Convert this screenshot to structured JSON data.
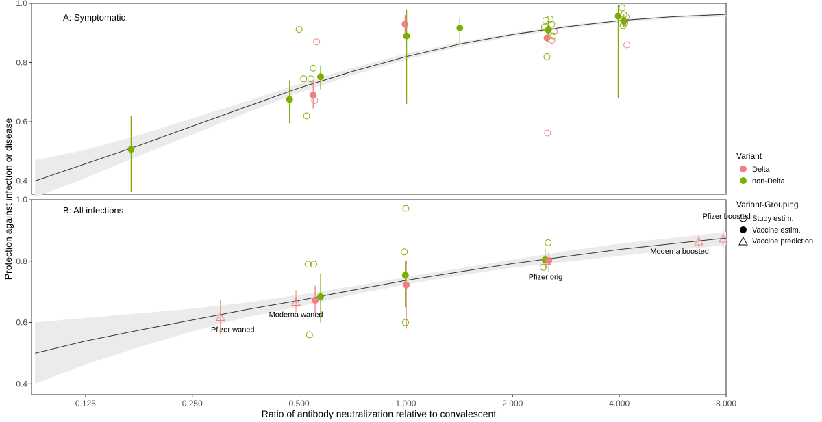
{
  "chart_data": {
    "type": "scatter",
    "xlabel": "Ratio of antibody neutralization relative to convalescent",
    "ylabel": "Protection against infection or disease",
    "x_scale": "log2",
    "xlim": [
      0.088,
      8.0
    ],
    "x_ticks": [
      0.125,
      0.25,
      0.5,
      1.0,
      2.0,
      4.0,
      8.0
    ],
    "x_tick_labels": [
      "0.125",
      "0.250",
      "0.500",
      "1.000",
      "2.000",
      "4.000",
      "8.000"
    ],
    "grid": false,
    "legend_position": "right",
    "colors": {
      "Delta": "#f08080",
      "non-Delta": "#7cae00",
      "curve": "#333333",
      "ribbon": "#ebebeb"
    },
    "legend": {
      "variant_title": "Variant",
      "variants": [
        "Delta",
        "non-Delta"
      ],
      "grouping_title": "Variant-Grouping",
      "groupings": [
        "Study estim.",
        "Vaccine estim.",
        "Vaccine prediction"
      ]
    },
    "panels": [
      {
        "title": "A: Symptomatic",
        "ylim": [
          0.355,
          1.0
        ],
        "y_ticks": [
          0.4,
          0.6,
          0.8,
          1.0
        ],
        "y_tick_labels": [
          "0.4",
          "0.6",
          "0.8",
          "1.0"
        ],
        "curve": [
          [
            0.09,
            0.4
          ],
          [
            0.125,
            0.458
          ],
          [
            0.177,
            0.52
          ],
          [
            0.25,
            0.585
          ],
          [
            0.354,
            0.65
          ],
          [
            0.5,
            0.714
          ],
          [
            0.707,
            0.77
          ],
          [
            1.0,
            0.82
          ],
          [
            1.414,
            0.862
          ],
          [
            2.0,
            0.895
          ],
          [
            2.83,
            0.921
          ],
          [
            4.0,
            0.942
          ],
          [
            5.66,
            0.955
          ],
          [
            8.0,
            0.963
          ]
        ],
        "ribbon_upper": [
          [
            0.09,
            0.47
          ],
          [
            0.125,
            0.505
          ],
          [
            0.177,
            0.555
          ],
          [
            0.25,
            0.612
          ],
          [
            0.354,
            0.668
          ],
          [
            0.5,
            0.728
          ],
          [
            0.707,
            0.782
          ],
          [
            1.0,
            0.83
          ],
          [
            1.414,
            0.869
          ],
          [
            2.0,
            0.9
          ],
          [
            2.83,
            0.926
          ],
          [
            4.0,
            0.946
          ],
          [
            5.66,
            0.958
          ],
          [
            8.0,
            0.966
          ]
        ],
        "ribbon_lower": [
          [
            0.09,
            0.345
          ],
          [
            0.125,
            0.41
          ],
          [
            0.177,
            0.485
          ],
          [
            0.25,
            0.557
          ],
          [
            0.354,
            0.63
          ],
          [
            0.5,
            0.698
          ],
          [
            0.707,
            0.757
          ],
          [
            1.0,
            0.81
          ],
          [
            1.414,
            0.854
          ],
          [
            2.0,
            0.888
          ],
          [
            2.83,
            0.915
          ],
          [
            4.0,
            0.936
          ],
          [
            5.66,
            0.949
          ],
          [
            8.0,
            0.955
          ]
        ],
        "vaccine_estimates": [
          {
            "variant": "non-Delta",
            "x": 0.168,
            "y": 0.507,
            "lo": 0.362,
            "hi": 0.62
          },
          {
            "variant": "non-Delta",
            "x": 0.47,
            "y": 0.675,
            "lo": 0.595,
            "hi": 0.74
          },
          {
            "variant": "Delta",
            "x": 0.548,
            "y": 0.69,
            "lo": 0.645,
            "hi": 0.74
          },
          {
            "variant": "non-Delta",
            "x": 0.575,
            "y": 0.752,
            "lo": 0.71,
            "hi": 0.79
          },
          {
            "variant": "Delta",
            "x": 0.995,
            "y": 0.93,
            "lo": 0.89,
            "hi": 0.96
          },
          {
            "variant": "non-Delta",
            "x": 1.005,
            "y": 0.89,
            "lo": 0.66,
            "hi": 0.98
          },
          {
            "variant": "non-Delta",
            "x": 1.42,
            "y": 0.917,
            "lo": 0.86,
            "hi": 0.95
          },
          {
            "variant": "Delta",
            "x": 2.5,
            "y": 0.883,
            "lo": 0.85,
            "hi": 0.9
          },
          {
            "variant": "non-Delta",
            "x": 2.52,
            "y": 0.91,
            "lo": 0.87,
            "hi": 0.94
          },
          {
            "variant": "non-Delta",
            "x": 3.97,
            "y": 0.957,
            "lo": 0.68,
            "hi": 0.995
          },
          {
            "variant": "non-Delta",
            "x": 4.12,
            "y": 0.94,
            "lo": 0.92,
            "hi": 0.96
          }
        ],
        "study_estimates": [
          {
            "variant": "non-Delta",
            "x": 0.5,
            "y": 0.912
          },
          {
            "variant": "Delta",
            "x": 0.56,
            "y": 0.87
          },
          {
            "variant": "non-Delta",
            "x": 0.515,
            "y": 0.745
          },
          {
            "variant": "non-Delta",
            "x": 0.54,
            "y": 0.745
          },
          {
            "variant": "non-Delta",
            "x": 0.548,
            "y": 0.781
          },
          {
            "variant": "Delta",
            "x": 0.553,
            "y": 0.672
          },
          {
            "variant": "non-Delta",
            "x": 0.525,
            "y": 0.62
          },
          {
            "variant": "Delta",
            "x": 2.51,
            "y": 0.562
          },
          {
            "variant": "non-Delta",
            "x": 2.5,
            "y": 0.82
          },
          {
            "variant": "non-Delta",
            "x": 2.46,
            "y": 0.92
          },
          {
            "variant": "non-Delta",
            "x": 2.48,
            "y": 0.942
          },
          {
            "variant": "non-Delta",
            "x": 2.55,
            "y": 0.947
          },
          {
            "variant": "non-Delta",
            "x": 2.58,
            "y": 0.93
          },
          {
            "variant": "Delta",
            "x": 2.62,
            "y": 0.905
          },
          {
            "variant": "non-Delta",
            "x": 2.6,
            "y": 0.89
          },
          {
            "variant": "Delta",
            "x": 2.58,
            "y": 0.875
          },
          {
            "variant": "non-Delta",
            "x": 4.07,
            "y": 0.985
          },
          {
            "variant": "non-Delta",
            "x": 4.12,
            "y": 0.962
          },
          {
            "variant": "Delta",
            "x": 4.18,
            "y": 0.955
          },
          {
            "variant": "non-Delta",
            "x": 4.1,
            "y": 0.925
          },
          {
            "variant": "Delta",
            "x": 4.15,
            "y": 0.935
          },
          {
            "variant": "Delta",
            "x": 4.2,
            "y": 0.86
          }
        ],
        "vaccine_predictions": []
      },
      {
        "title": "B: All infections",
        "ylim": [
          0.365,
          1.0
        ],
        "y_ticks": [
          0.4,
          0.6,
          0.8,
          1.0
        ],
        "y_tick_labels": [
          "0.4",
          "0.6",
          "0.8",
          "1.0"
        ],
        "curve": [
          [
            0.09,
            0.5
          ],
          [
            0.125,
            0.54
          ],
          [
            0.177,
            0.575
          ],
          [
            0.25,
            0.608
          ],
          [
            0.354,
            0.642
          ],
          [
            0.5,
            0.672
          ],
          [
            0.707,
            0.705
          ],
          [
            1.0,
            0.737
          ],
          [
            1.414,
            0.765
          ],
          [
            2.0,
            0.792
          ],
          [
            2.83,
            0.815
          ],
          [
            4.0,
            0.838
          ],
          [
            5.66,
            0.857
          ],
          [
            8.0,
            0.875
          ]
        ],
        "ribbon_upper": [
          [
            0.09,
            0.6
          ],
          [
            0.125,
            0.615
          ],
          [
            0.177,
            0.63
          ],
          [
            0.25,
            0.645
          ],
          [
            0.354,
            0.665
          ],
          [
            0.5,
            0.69
          ],
          [
            0.707,
            0.718
          ],
          [
            1.0,
            0.748
          ],
          [
            1.414,
            0.776
          ],
          [
            2.0,
            0.805
          ],
          [
            2.83,
            0.832
          ],
          [
            4.0,
            0.857
          ],
          [
            5.66,
            0.876
          ],
          [
            8.0,
            0.895
          ]
        ],
        "ribbon_lower": [
          [
            0.09,
            0.4
          ],
          [
            0.125,
            0.463
          ],
          [
            0.177,
            0.52
          ],
          [
            0.25,
            0.571
          ],
          [
            0.354,
            0.617
          ],
          [
            0.5,
            0.652
          ],
          [
            0.707,
            0.69
          ],
          [
            1.0,
            0.724
          ],
          [
            1.414,
            0.753
          ],
          [
            2.0,
            0.779
          ],
          [
            2.83,
            0.798
          ],
          [
            4.0,
            0.817
          ],
          [
            5.66,
            0.835
          ],
          [
            8.0,
            0.852
          ]
        ],
        "vaccine_estimates": [
          {
            "variant": "Delta",
            "x": 0.555,
            "y": 0.672,
            "lo": 0.63,
            "hi": 0.72
          },
          {
            "variant": "non-Delta",
            "x": 0.575,
            "y": 0.684,
            "lo": 0.6,
            "hi": 0.76
          },
          {
            "variant": "non-Delta",
            "x": 0.997,
            "y": 0.754,
            "lo": 0.65,
            "hi": 0.8
          },
          {
            "variant": "Delta",
            "x": 1.003,
            "y": 0.722,
            "lo": 0.58,
            "hi": 0.8
          },
          {
            "variant": "non-Delta",
            "x": 2.47,
            "y": 0.804,
            "lo": 0.77,
            "hi": 0.84
          },
          {
            "variant": "Delta",
            "x": 2.53,
            "y": 0.802,
            "lo": 0.765,
            "hi": 0.83
          }
        ],
        "study_estimates": [
          {
            "variant": "non-Delta",
            "x": 0.53,
            "y": 0.79
          },
          {
            "variant": "non-Delta",
            "x": 0.55,
            "y": 0.79
          },
          {
            "variant": "non-Delta",
            "x": 0.535,
            "y": 0.56
          },
          {
            "variant": "non-Delta",
            "x": 0.99,
            "y": 0.83
          },
          {
            "variant": "non-Delta",
            "x": 1.0,
            "y": 0.972
          },
          {
            "variant": "non-Delta",
            "x": 0.998,
            "y": 0.6
          },
          {
            "variant": "non-Delta",
            "x": 2.52,
            "y": 0.86
          },
          {
            "variant": "non-Delta",
            "x": 2.44,
            "y": 0.78
          }
        ],
        "vaccine_predictions": [
          {
            "label": "Pfizer waned",
            "x": 0.3,
            "y": 0.618,
            "lo": 0.56,
            "hi": 0.675,
            "label_dx": 18,
            "label_dy": 22
          },
          {
            "label": "Moderna waned",
            "x": 0.49,
            "y": 0.667,
            "lo": 0.635,
            "hi": 0.705,
            "label_dx": 0,
            "label_dy": 22
          },
          {
            "label": "Pfizer orig",
            "x": 2.5,
            "y": 0.801,
            "lo": 0.78,
            "hi": 0.82,
            "label_dx": -2,
            "label_dy": 27
          },
          {
            "label": "Moderna boosted",
            "x": 6.7,
            "y": 0.864,
            "lo": 0.845,
            "hi": 0.885,
            "label_dx": -28,
            "label_dy": 18
          },
          {
            "label": "Pfizer boosted",
            "x": 7.85,
            "y": 0.873,
            "lo": 0.84,
            "hi": 0.905,
            "label_dx": 5,
            "label_dy": -29
          }
        ]
      }
    ]
  }
}
